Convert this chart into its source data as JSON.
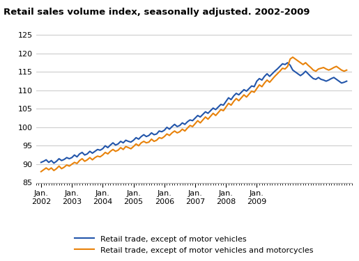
{
  "title": "Retail sales volume index, seasonally adjusted. 2002-2009",
  "ylim": [
    85,
    126
  ],
  "yticks": [
    85,
    90,
    95,
    100,
    105,
    110,
    115,
    120,
    125
  ],
  "line1_color": "#2255aa",
  "line2_color": "#e8820a",
  "line1_label": "Retail trade, except of motor vehicles",
  "line2_label": "Retail trade, except of motor vehicles and motorcycles",
  "background_color": "#ffffff",
  "grid_color": "#cccccc",
  "x_tick_labels": [
    "Jan.\n2002",
    "Jan.\n2003",
    "Jan.\n2004",
    "Jan.\n2005",
    "Jan.\n2006",
    "Jan.\n2007",
    "Jan.\n2008",
    "Jan.\n2009"
  ],
  "x_tick_positions": [
    0,
    12,
    24,
    36,
    48,
    60,
    72,
    84
  ],
  "line1_values": [
    90.5,
    90.8,
    91.2,
    90.5,
    91.0,
    90.3,
    90.8,
    91.5,
    91.0,
    91.3,
    91.8,
    91.5,
    91.8,
    92.5,
    92.0,
    92.8,
    93.2,
    92.5,
    92.8,
    93.5,
    93.0,
    93.5,
    94.0,
    93.8,
    94.2,
    95.0,
    94.5,
    95.2,
    95.8,
    95.2,
    95.5,
    96.2,
    95.8,
    96.5,
    96.2,
    96.0,
    96.5,
    97.2,
    96.8,
    97.5,
    98.0,
    97.5,
    97.8,
    98.5,
    98.0,
    98.2,
    99.0,
    98.8,
    99.2,
    100.0,
    99.5,
    100.2,
    100.8,
    100.2,
    100.5,
    101.2,
    100.8,
    101.5,
    102.0,
    101.8,
    102.5,
    103.2,
    102.8,
    103.5,
    104.2,
    103.8,
    104.5,
    105.2,
    104.8,
    105.5,
    106.2,
    106.0,
    107.0,
    108.0,
    107.5,
    108.5,
    109.2,
    108.8,
    109.5,
    110.2,
    109.8,
    110.5,
    111.2,
    111.0,
    112.5,
    113.2,
    112.8,
    113.8,
    114.5,
    113.8,
    114.5,
    115.2,
    115.8,
    116.5,
    117.2,
    117.0,
    117.5,
    116.8,
    115.5,
    115.0,
    114.5,
    114.0,
    114.5,
    115.2,
    114.5,
    113.8,
    113.2,
    113.0,
    113.5,
    113.0,
    112.8,
    112.5,
    112.8,
    113.2,
    113.5,
    113.0,
    112.5,
    112.0,
    112.2,
    112.5
  ],
  "line2_values": [
    88.0,
    88.5,
    89.0,
    88.5,
    89.0,
    88.3,
    88.8,
    89.5,
    88.8,
    89.2,
    89.8,
    89.5,
    90.0,
    90.5,
    90.2,
    91.0,
    91.5,
    90.8,
    91.2,
    91.8,
    91.2,
    91.8,
    92.2,
    92.0,
    92.5,
    93.2,
    92.8,
    93.5,
    94.0,
    93.5,
    93.8,
    94.5,
    94.0,
    94.8,
    94.5,
    94.2,
    94.8,
    95.5,
    95.0,
    95.8,
    96.2,
    95.8,
    96.0,
    96.8,
    96.2,
    96.5,
    97.2,
    97.0,
    97.5,
    98.2,
    97.8,
    98.5,
    99.0,
    98.5,
    98.8,
    99.5,
    99.0,
    99.8,
    100.5,
    100.2,
    101.0,
    101.8,
    101.2,
    102.0,
    102.8,
    102.2,
    103.0,
    103.8,
    103.2,
    104.0,
    104.8,
    104.5,
    105.5,
    106.5,
    106.0,
    107.0,
    107.8,
    107.2,
    108.0,
    108.8,
    108.2,
    109.0,
    109.8,
    109.5,
    110.5,
    111.5,
    111.0,
    112.0,
    112.8,
    112.2,
    113.0,
    113.8,
    114.5,
    115.2,
    116.0,
    115.8,
    116.5,
    118.5,
    119.0,
    118.5,
    118.0,
    117.5,
    117.0,
    117.5,
    116.8,
    116.2,
    115.5,
    115.2,
    115.8,
    116.0,
    116.2,
    115.8,
    115.5,
    115.8,
    116.2,
    116.5,
    116.0,
    115.5,
    115.2,
    115.5
  ]
}
